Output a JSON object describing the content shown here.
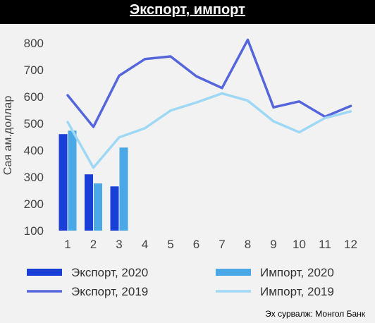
{
  "chart_data": {
    "type": "bar",
    "title": "Экспорт, импорт",
    "ylabel": "Сая ам.доллар",
    "xlabel": "",
    "categories": [
      "1",
      "2",
      "3",
      "4",
      "5",
      "6",
      "7",
      "8",
      "9",
      "10",
      "11",
      "12"
    ],
    "ylim": [
      100,
      800
    ],
    "yticks": [
      100,
      200,
      300,
      400,
      500,
      600,
      700,
      800
    ],
    "bar_series": [
      {
        "name": "Экспорт, 2020",
        "color": "#1a3fd6",
        "values": [
          460,
          310,
          265
        ]
      },
      {
        "name": "Импорт, 2020",
        "color": "#4aa8e6",
        "values": [
          473,
          276,
          410
        ]
      }
    ],
    "line_series": [
      {
        "name": "Экспорт, 2019",
        "color": "#5566dd",
        "values": [
          605,
          487,
          678,
          740,
          750,
          676,
          632,
          812,
          560,
          582,
          525,
          565
        ]
      },
      {
        "name": "Импорт, 2019",
        "color": "#9fd8f5",
        "values": [
          505,
          335,
          448,
          482,
          548,
          578,
          612,
          585,
          508,
          467,
          520,
          545
        ]
      }
    ],
    "legend_position": "bottom",
    "source": "Эх сурвалж: Монгол Банк"
  }
}
